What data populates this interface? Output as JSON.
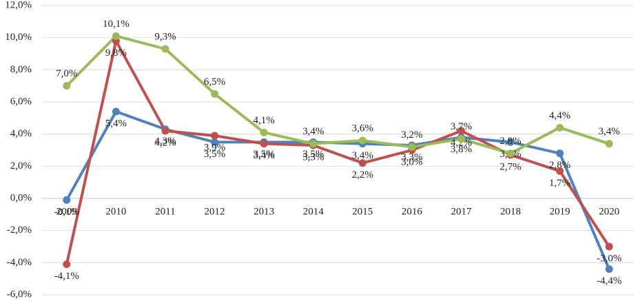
{
  "chart_data": {
    "type": "line",
    "categories": [
      "2009",
      "2010",
      "2011",
      "2012",
      "2013",
      "2014",
      "2015",
      "2016",
      "2017",
      "2018",
      "2019",
      "2020"
    ],
    "series": [
      {
        "color": "#4f81bd",
        "values": [
          -0.1,
          5.4,
          4.3,
          3.5,
          3.5,
          3.5,
          3.4,
          3.3,
          3.8,
          3.5,
          2.8,
          -4.4
        ],
        "value_labels": [
          "-0,1%",
          "5,4%",
          "4,3%",
          "3,5%",
          "3,5%",
          "3,5%",
          "3,4%",
          "3,3%",
          "3,8%",
          "3,5%",
          "2,8%",
          "-4,4%"
        ]
      },
      {
        "color": "#c0504d",
        "values": [
          -4.1,
          9.8,
          4.2,
          3.9,
          3.4,
          3.3,
          2.2,
          3.0,
          4.2,
          2.7,
          1.7,
          -3.0
        ],
        "value_labels": [
          "-4,1%",
          "9,8%",
          "4,2%",
          "3,9%",
          "3,4%",
          "3,3%",
          "2,2%",
          "3,0%",
          "4,2%",
          "2,7%",
          "1,7%",
          "-3,0%"
        ]
      },
      {
        "color": "#9bbb59",
        "values": [
          7.0,
          10.1,
          9.3,
          6.5,
          4.1,
          3.4,
          3.6,
          3.2,
          3.7,
          2.8,
          4.4,
          3.4
        ],
        "value_labels": [
          "7,0%",
          "10,1%",
          "9,3%",
          "6,5%",
          "4,1%",
          "3,4%",
          "3,6%",
          "3,2%",
          "3,7%",
          "2,8%",
          "4,4%",
          "3,4%"
        ]
      }
    ],
    "ylim": [
      -6,
      12
    ],
    "yticks": [
      {
        "value": -6,
        "label": "-6,0%"
      },
      {
        "value": -4,
        "label": "-4,0%"
      },
      {
        "value": -2,
        "label": "-2,0%"
      },
      {
        "value": 0,
        "label": "0,0%"
      },
      {
        "value": 2,
        "label": "2,0%"
      },
      {
        "value": 4,
        "label": "4,0%"
      },
      {
        "value": 6,
        "label": "6,0%"
      },
      {
        "value": 8,
        "label": "8,0%"
      },
      {
        "value": 10,
        "label": "10,0%"
      },
      {
        "value": 12,
        "label": "12,0%"
      }
    ],
    "grid": true
  }
}
